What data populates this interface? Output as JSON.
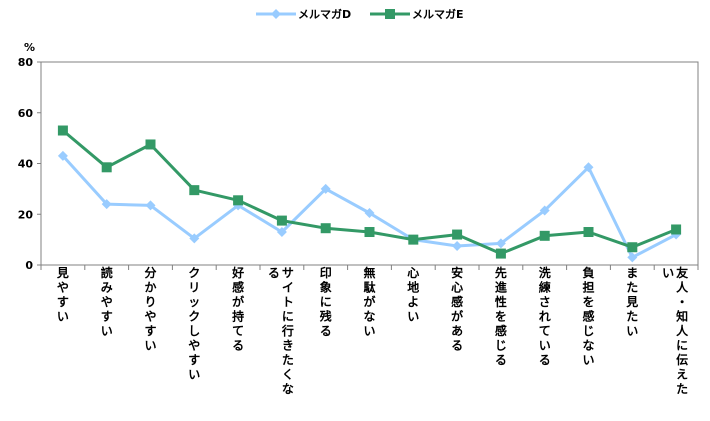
{
  "chart_data": {
    "type": "line",
    "ylabel": "%",
    "ylim": [
      0,
      80
    ],
    "yticks": [
      0,
      20,
      40,
      60,
      80
    ],
    "grid": false,
    "legend_position": "top",
    "categories": [
      "見やすい",
      "読みやすい",
      "分かりやすい",
      "クリックしやすい",
      "好感が持てる",
      "サイトに行きたくなる",
      "印象に残る",
      "無駄がない",
      "心地よい",
      "安心感がある",
      "先進性を感じる",
      "洗練されている",
      "負担を感じない",
      "また見たい",
      "友人・知人に伝えたい"
    ],
    "series": [
      {
        "name": "メルマガD",
        "color": "#99ccff",
        "marker": "diamond",
        "values": [
          43,
          24,
          23.5,
          10.5,
          23.5,
          13,
          30,
          20.5,
          10,
          7.5,
          8.5,
          21.5,
          38.5,
          3,
          12
        ]
      },
      {
        "name": "メルマガE",
        "color": "#339966",
        "marker": "square",
        "values": [
          53,
          38.5,
          47.5,
          29.5,
          25.5,
          17.5,
          14.5,
          13,
          10,
          12,
          4.5,
          11.5,
          13,
          7,
          14
        ]
      }
    ]
  }
}
